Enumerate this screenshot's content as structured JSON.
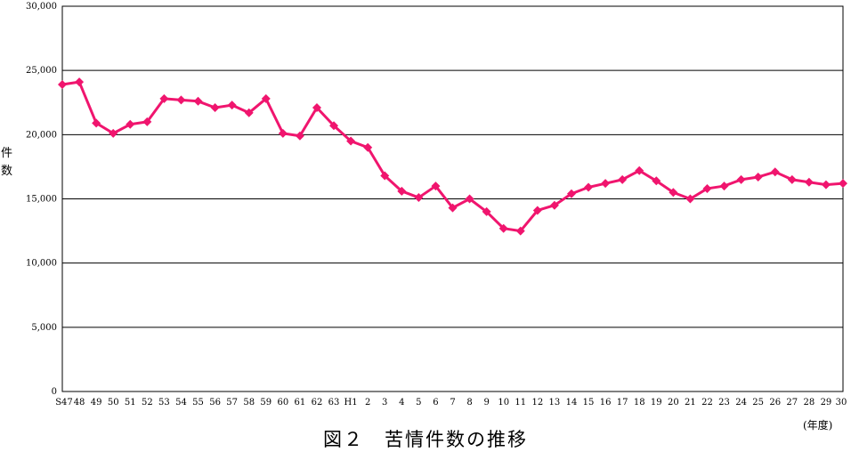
{
  "chart_data": {
    "type": "line",
    "title": "",
    "caption": "図２　苦情件数の推移",
    "ylabel": "件数",
    "ylabel_chars": [
      "件",
      "数"
    ],
    "xlabel": "(年度)",
    "ylim": [
      0,
      30000
    ],
    "yticks": [
      0,
      5000,
      10000,
      15000,
      20000,
      25000,
      30000
    ],
    "ytick_labels": [
      "0",
      "5,000",
      "10,000",
      "15,000",
      "20,000",
      "25,000",
      "30,000"
    ],
    "grid": "horizontal",
    "legend": "none",
    "categories": [
      "S47",
      "48",
      "49",
      "50",
      "51",
      "52",
      "53",
      "54",
      "55",
      "56",
      "57",
      "58",
      "59",
      "60",
      "61",
      "62",
      "63",
      "H1",
      "2",
      "3",
      "4",
      "5",
      "6",
      "7",
      "8",
      "9",
      "10",
      "11",
      "12",
      "13",
      "14",
      "15",
      "16",
      "17",
      "18",
      "19",
      "20",
      "21",
      "22",
      "23",
      "24",
      "25",
      "26",
      "27",
      "28",
      "29",
      "30"
    ],
    "values": [
      23900,
      24100,
      20900,
      20100,
      20800,
      21000,
      22800,
      22700,
      22600,
      22100,
      22300,
      21700,
      22800,
      20100,
      19900,
      22100,
      20700,
      19500,
      19000,
      16800,
      15600,
      15100,
      16000,
      14300,
      15000,
      14000,
      12700,
      12500,
      14100,
      14500,
      15400,
      15900,
      16200,
      16500,
      17200,
      16400,
      15500,
      15000,
      15800,
      16000,
      16500,
      16700,
      17100,
      16500,
      16300,
      16100,
      16200
    ],
    "line_color": "#f0156e",
    "marker": "diamond"
  }
}
